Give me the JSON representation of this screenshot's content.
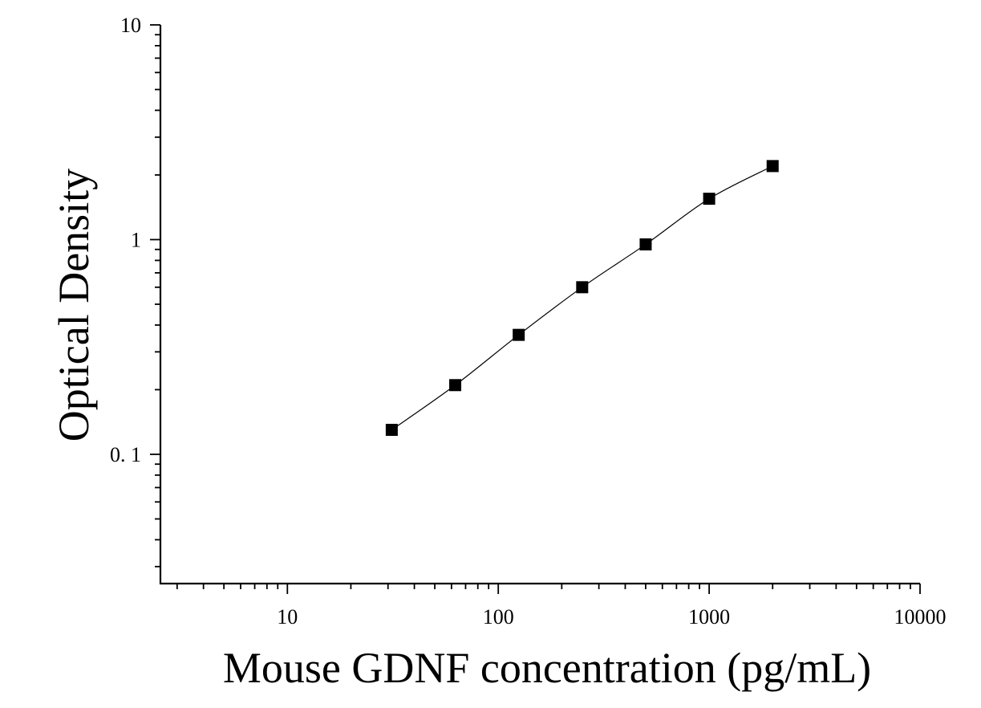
{
  "chart_data": {
    "type": "scatter",
    "title": "",
    "xlabel": "Mouse GDNF concentration (pg/mL)",
    "ylabel": "Optical Density",
    "x_scale": "log",
    "y_scale": "log",
    "xlim": [
      2.5,
      10000
    ],
    "ylim": [
      0.025,
      10
    ],
    "x_ticks": [
      {
        "value": 10,
        "label": "10"
      },
      {
        "value": 100,
        "label": "100"
      },
      {
        "value": 1000,
        "label": "1000"
      },
      {
        "value": 10000,
        "label": "10000"
      }
    ],
    "y_ticks": [
      {
        "value": 0.1,
        "label": "0. 1"
      },
      {
        "value": 1,
        "label": "1"
      },
      {
        "value": 10,
        "label": "10"
      }
    ],
    "grid": false,
    "legend": "none",
    "marker": "square",
    "series": [
      {
        "points": [
          {
            "x": 31.25,
            "y": 0.13
          },
          {
            "x": 62.5,
            "y": 0.21
          },
          {
            "x": 125,
            "y": 0.36
          },
          {
            "x": 250,
            "y": 0.6
          },
          {
            "x": 500,
            "y": 0.95
          },
          {
            "x": 1000,
            "y": 1.55
          },
          {
            "x": 2000,
            "y": 2.2
          }
        ],
        "color": "#000000",
        "fit_curve": true
      }
    ]
  }
}
